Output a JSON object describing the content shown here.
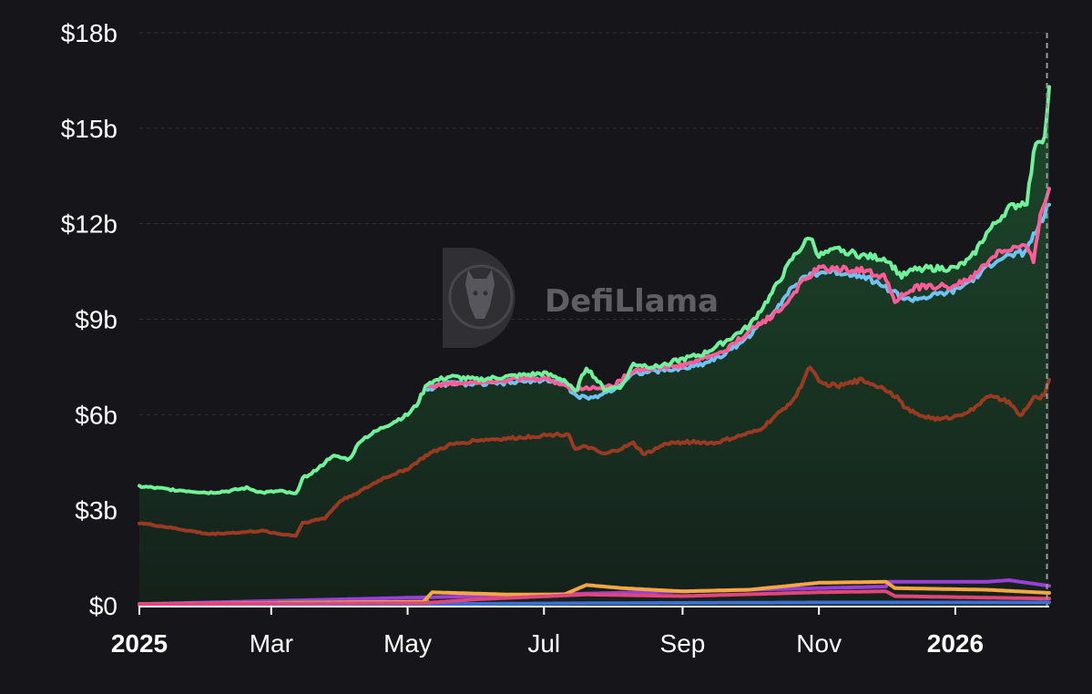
{
  "watermark": "DefiLlama",
  "colors": {
    "background": "#16161a",
    "grid": "#2c2c32",
    "axis": "#ffffff",
    "crosshair": "#9a9aa0"
  },
  "chart_data": {
    "type": "area",
    "title": "",
    "xlabel": "",
    "ylabel": "",
    "ylim": [
      0,
      18
    ],
    "y_unit": "billions USD",
    "y_ticks": [
      {
        "value": 0,
        "label": "$0"
      },
      {
        "value": 3,
        "label": "$3b"
      },
      {
        "value": 6,
        "label": "$6b"
      },
      {
        "value": 9,
        "label": "$9b"
      },
      {
        "value": 12,
        "label": "$12b"
      },
      {
        "value": 15,
        "label": "$15b"
      },
      {
        "value": 18,
        "label": "$18b"
      }
    ],
    "x_ticks": [
      {
        "date": "2025-01-01",
        "label": "2025",
        "bold": true
      },
      {
        "date": "2025-03-01",
        "label": "Mar",
        "bold": false
      },
      {
        "date": "2025-05-01",
        "label": "May",
        "bold": false
      },
      {
        "date": "2025-07-01",
        "label": "Jul",
        "bold": false
      },
      {
        "date": "2025-09-01",
        "label": "Sep",
        "bold": false
      },
      {
        "date": "2025-11-01",
        "label": "Nov",
        "bold": false
      },
      {
        "date": "2026-01-01",
        "label": "2026",
        "bold": true
      }
    ],
    "xlim": [
      "2025-01-01",
      "2026-02-12"
    ],
    "crosshair_date": "2026-02-11",
    "grid": true,
    "legend": "none",
    "series": [
      {
        "color": "#3b6fd6",
        "fill": false,
        "points": [
          [
            "2025-01-01",
            0.03
          ],
          [
            "2025-05-10",
            0.05
          ],
          [
            "2025-08-01",
            0.08
          ],
          [
            "2025-11-01",
            0.1
          ],
          [
            "2026-02-12",
            0.1
          ]
        ]
      },
      {
        "color": "#9b3fd9",
        "fill": false,
        "points": [
          [
            "2025-01-01",
            0.05
          ],
          [
            "2025-12-01",
            0.6
          ],
          [
            "2025-12-02",
            0.75
          ],
          [
            "2026-01-15",
            0.75
          ],
          [
            "2026-01-25",
            0.8
          ],
          [
            "2026-02-12",
            0.62
          ]
        ]
      },
      {
        "color": "#4caf50",
        "fill": false,
        "points": [
          [
            "2025-01-01",
            0.05
          ],
          [
            "2025-03-01",
            0.06
          ],
          [
            "2025-03-05",
            0.1
          ],
          [
            "2025-05-08",
            0.12
          ],
          [
            "2025-05-10",
            0.15
          ]
        ]
      },
      {
        "color": "#f4a742",
        "fill": false,
        "points": [
          [
            "2025-01-01",
            0.05
          ],
          [
            "2025-05-08",
            0.12
          ],
          [
            "2025-05-12",
            0.42
          ],
          [
            "2025-06-15",
            0.35
          ],
          [
            "2025-07-10",
            0.35
          ],
          [
            "2025-07-20",
            0.65
          ],
          [
            "2025-08-05",
            0.55
          ],
          [
            "2025-09-01",
            0.45
          ],
          [
            "2025-10-01",
            0.5
          ],
          [
            "2025-11-01",
            0.72
          ],
          [
            "2025-12-01",
            0.75
          ],
          [
            "2025-12-05",
            0.55
          ],
          [
            "2026-01-15",
            0.5
          ],
          [
            "2026-02-12",
            0.4
          ]
        ]
      },
      {
        "color": "#e0457b",
        "fill": false,
        "points": [
          [
            "2025-01-01",
            0.05
          ],
          [
            "2025-05-08",
            0.08
          ],
          [
            "2025-06-01",
            0.2
          ],
          [
            "2025-07-20",
            0.35
          ],
          [
            "2025-09-01",
            0.3
          ],
          [
            "2025-11-01",
            0.42
          ],
          [
            "2025-12-01",
            0.45
          ],
          [
            "2025-12-05",
            0.3
          ],
          [
            "2026-02-12",
            0.22
          ]
        ]
      },
      {
        "color": "#9b3a22",
        "fill": true,
        "fill_top": "#3a1a10",
        "fill_bottom": "#1a1210",
        "points": [
          [
            "2025-01-01",
            2.6
          ],
          [
            "2025-01-15",
            2.45
          ],
          [
            "2025-02-01",
            2.25
          ],
          [
            "2025-02-15",
            2.3
          ],
          [
            "2025-02-25",
            2.35
          ],
          [
            "2025-03-05",
            2.25
          ],
          [
            "2025-03-12",
            2.2
          ],
          [
            "2025-03-15",
            2.6
          ],
          [
            "2025-03-25",
            2.75
          ],
          [
            "2025-04-01",
            3.3
          ],
          [
            "2025-04-10",
            3.6
          ],
          [
            "2025-04-20",
            4.0
          ],
          [
            "2025-05-01",
            4.3
          ],
          [
            "2025-05-10",
            4.75
          ],
          [
            "2025-05-20",
            5.05
          ],
          [
            "2025-06-01",
            5.2
          ],
          [
            "2025-06-15",
            5.25
          ],
          [
            "2025-07-01",
            5.35
          ],
          [
            "2025-07-12",
            5.4
          ],
          [
            "2025-07-15",
            4.9
          ],
          [
            "2025-07-20",
            5.0
          ],
          [
            "2025-07-28",
            4.75
          ],
          [
            "2025-08-05",
            4.95
          ],
          [
            "2025-08-10",
            5.1
          ],
          [
            "2025-08-15",
            4.75
          ],
          [
            "2025-08-25",
            5.1
          ],
          [
            "2025-09-05",
            5.15
          ],
          [
            "2025-09-15",
            5.1
          ],
          [
            "2025-09-25",
            5.3
          ],
          [
            "2025-10-05",
            5.5
          ],
          [
            "2025-10-15",
            6.1
          ],
          [
            "2025-10-22",
            6.6
          ],
          [
            "2025-10-28",
            7.55
          ],
          [
            "2025-11-01",
            7.0
          ],
          [
            "2025-11-10",
            6.9
          ],
          [
            "2025-11-20",
            7.1
          ],
          [
            "2025-12-01",
            6.8
          ],
          [
            "2025-12-05",
            6.6
          ],
          [
            "2025-12-10",
            6.2
          ],
          [
            "2025-12-15",
            6.0
          ],
          [
            "2025-12-25",
            5.85
          ],
          [
            "2026-01-01",
            5.95
          ],
          [
            "2026-01-10",
            6.2
          ],
          [
            "2026-01-15",
            6.6
          ],
          [
            "2026-01-25",
            6.4
          ],
          [
            "2026-01-30",
            5.95
          ],
          [
            "2026-02-05",
            6.5
          ],
          [
            "2026-02-10",
            6.6
          ],
          [
            "2026-02-12",
            7.1
          ]
        ]
      },
      {
        "color": "#6fc3f0",
        "fill": true,
        "fill_top": "#2a4d63",
        "fill_bottom": "#18232b",
        "points": [
          [
            "2025-05-10",
            6.8
          ],
          [
            "2025-05-20",
            7.0
          ],
          [
            "2025-06-01",
            6.95
          ],
          [
            "2025-06-15",
            7.0
          ],
          [
            "2025-07-01",
            7.1
          ],
          [
            "2025-07-10",
            7.0
          ],
          [
            "2025-07-15",
            6.6
          ],
          [
            "2025-07-22",
            6.5
          ],
          [
            "2025-08-01",
            6.8
          ],
          [
            "2025-08-10",
            7.3
          ],
          [
            "2025-09-01",
            7.45
          ],
          [
            "2025-09-10",
            7.6
          ],
          [
            "2025-09-20",
            7.9
          ],
          [
            "2025-10-01",
            8.5
          ],
          [
            "2025-10-10",
            9.1
          ],
          [
            "2025-10-20",
            10.0
          ],
          [
            "2025-10-28",
            10.4
          ],
          [
            "2025-11-05",
            10.5
          ],
          [
            "2025-11-20",
            10.4
          ],
          [
            "2025-12-01",
            10.0
          ],
          [
            "2025-12-10",
            9.6
          ],
          [
            "2025-12-20",
            9.7
          ],
          [
            "2026-01-01",
            9.9
          ],
          [
            "2026-01-10",
            10.3
          ],
          [
            "2026-01-20",
            10.9
          ],
          [
            "2026-02-01",
            11.1
          ],
          [
            "2026-02-08",
            12.0
          ],
          [
            "2026-02-12",
            12.6
          ]
        ]
      },
      {
        "color": "#ff5c9a",
        "fill": false,
        "points": [
          [
            "2025-05-10",
            6.9
          ],
          [
            "2025-06-01",
            7.05
          ],
          [
            "2025-07-01",
            7.15
          ],
          [
            "2025-07-15",
            6.8
          ],
          [
            "2025-08-01",
            6.9
          ],
          [
            "2025-08-10",
            7.4
          ],
          [
            "2025-09-01",
            7.55
          ],
          [
            "2025-09-20",
            8.0
          ],
          [
            "2025-10-01",
            8.65
          ],
          [
            "2025-10-15",
            9.3
          ],
          [
            "2025-10-25",
            10.2
          ],
          [
            "2025-11-01",
            10.6
          ],
          [
            "2025-11-20",
            10.55
          ],
          [
            "2025-12-01",
            10.3
          ],
          [
            "2025-12-05",
            9.6
          ],
          [
            "2025-12-15",
            10.0
          ],
          [
            "2026-01-01",
            10.05
          ],
          [
            "2026-01-10",
            10.4
          ],
          [
            "2026-01-20",
            11.1
          ],
          [
            "2026-02-01",
            11.3
          ],
          [
            "2026-02-05",
            10.8
          ],
          [
            "2026-02-08",
            12.3
          ],
          [
            "2026-02-12",
            13.1
          ]
        ]
      },
      {
        "color": "#6ff29a",
        "fill": true,
        "fill_top": "#1d4a2c",
        "fill_bottom": "#14211a",
        "points": [
          [
            "2025-01-01",
            3.75
          ],
          [
            "2025-01-15",
            3.65
          ],
          [
            "2025-02-01",
            3.55
          ],
          [
            "2025-02-10",
            3.6
          ],
          [
            "2025-02-18",
            3.7
          ],
          [
            "2025-02-25",
            3.55
          ],
          [
            "2025-03-05",
            3.6
          ],
          [
            "2025-03-12",
            3.5
          ],
          [
            "2025-03-15",
            4.0
          ],
          [
            "2025-03-22",
            4.3
          ],
          [
            "2025-03-28",
            4.7
          ],
          [
            "2025-04-05",
            4.6
          ],
          [
            "2025-04-10",
            5.2
          ],
          [
            "2025-04-20",
            5.6
          ],
          [
            "2025-05-01",
            6.0
          ],
          [
            "2025-05-05",
            6.3
          ],
          [
            "2025-05-10",
            7.0
          ],
          [
            "2025-05-20",
            7.2
          ],
          [
            "2025-06-01",
            7.1
          ],
          [
            "2025-06-15",
            7.2
          ],
          [
            "2025-07-01",
            7.3
          ],
          [
            "2025-07-10",
            7.1
          ],
          [
            "2025-07-15",
            6.7
          ],
          [
            "2025-07-20",
            7.5
          ],
          [
            "2025-07-28",
            6.8
          ],
          [
            "2025-08-05",
            6.9
          ],
          [
            "2025-08-10",
            7.6
          ],
          [
            "2025-08-20",
            7.5
          ],
          [
            "2025-09-01",
            7.75
          ],
          [
            "2025-09-10",
            7.9
          ],
          [
            "2025-09-20",
            8.3
          ],
          [
            "2025-10-01",
            8.8
          ],
          [
            "2025-10-10",
            9.7
          ],
          [
            "2025-10-20",
            10.9
          ],
          [
            "2025-10-28",
            11.6
          ],
          [
            "2025-11-01",
            11.0
          ],
          [
            "2025-11-10",
            11.2
          ],
          [
            "2025-11-20",
            11.0
          ],
          [
            "2025-12-01",
            10.9
          ],
          [
            "2025-12-08",
            10.35
          ],
          [
            "2025-12-15",
            10.6
          ],
          [
            "2026-01-01",
            10.6
          ],
          [
            "2026-01-08",
            10.9
          ],
          [
            "2026-01-15",
            11.7
          ],
          [
            "2026-01-25",
            12.5
          ],
          [
            "2026-02-02",
            12.7
          ],
          [
            "2026-02-06",
            14.6
          ],
          [
            "2026-02-10",
            14.7
          ],
          [
            "2026-02-12",
            16.3
          ]
        ]
      }
    ]
  }
}
